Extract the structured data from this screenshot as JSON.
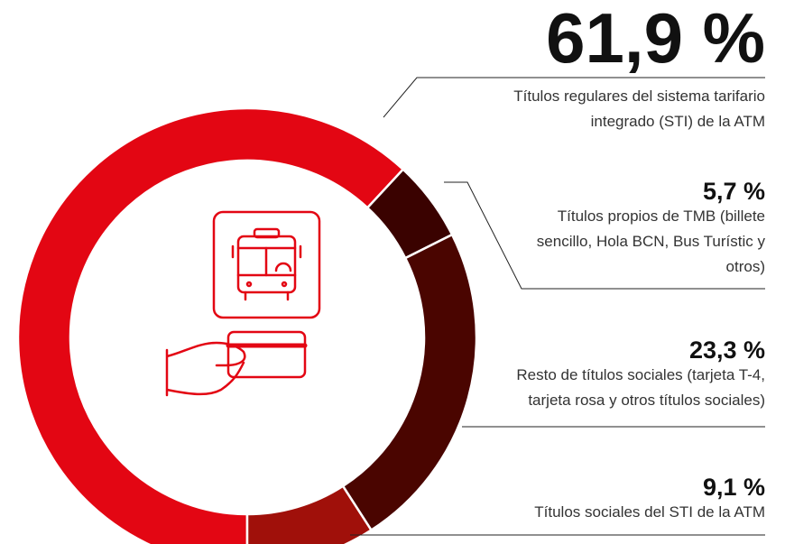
{
  "chart_data": {
    "type": "donut",
    "categories": [
      "Títulos regulares del sistema tarifario integrado (STI) de la ATM",
      "Títulos propios de TMB (billete sencillo, Hola BCN, Bus Turístic y otros)",
      "Resto de títulos sociales (tarjeta T-4, tarjeta rosa y otros títulos sociales)",
      "Títulos sociales del STI de la ATM"
    ],
    "values": [
      61.9,
      5.7,
      23.3,
      9.1
    ],
    "value_labels": [
      "61,9 %",
      "5,7 %",
      "23,3 %",
      "9,1 %"
    ],
    "colors": [
      "#e30613",
      "#3a0200",
      "#4a0500",
      "#a0100a"
    ]
  }
}
